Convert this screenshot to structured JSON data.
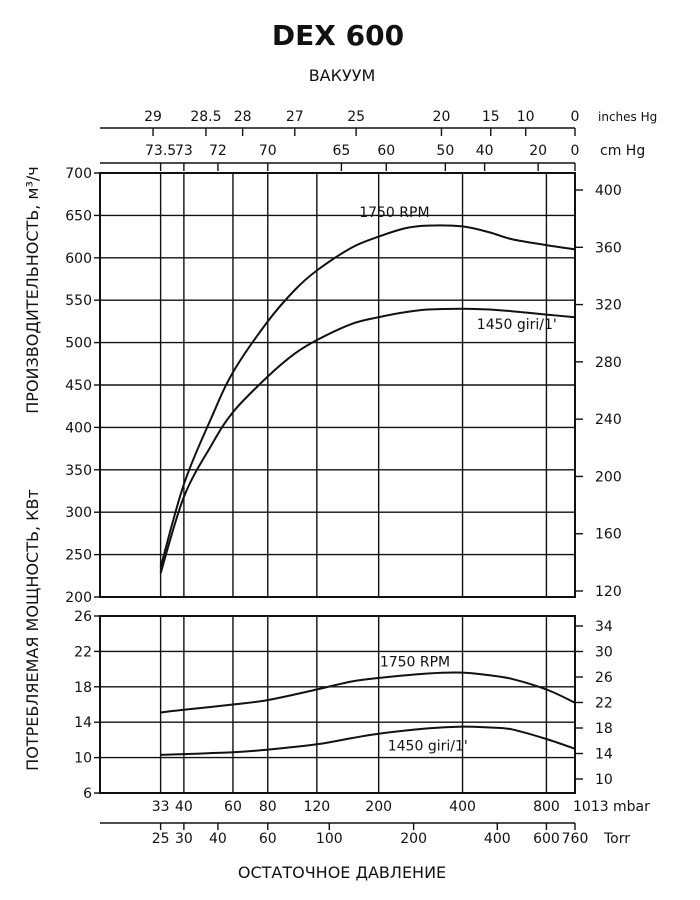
{
  "chart_data": {
    "type": "line",
    "title": "DEX 600",
    "top_axis_label": "ВАКУУМ",
    "bottom_axis_label": "ОСТАТОЧНОЕ ДАВЛЕНИЕ",
    "x_scale": "log",
    "x_range_mbar": [
      20,
      1013
    ],
    "top_axes": [
      {
        "unit": "inches Hg",
        "ticks": [
          {
            "label": "29",
            "mbar": 31
          },
          {
            "label": "28.5",
            "mbar": 48
          },
          {
            "label": "28",
            "mbar": 65
          },
          {
            "label": "27",
            "mbar": 100
          },
          {
            "label": "25",
            "mbar": 166
          },
          {
            "label": "20",
            "mbar": 336
          },
          {
            "label": "15",
            "mbar": 505
          },
          {
            "label": "10",
            "mbar": 674
          },
          {
            "label": "0",
            "mbar": 1013
          }
        ]
      },
      {
        "unit": "cm Hg",
        "ticks": [
          {
            "label": "73.5",
            "mbar": 33
          },
          {
            "label": "73",
            "mbar": 40
          },
          {
            "label": "72",
            "mbar": 53
          },
          {
            "label": "70",
            "mbar": 80
          },
          {
            "label": "65",
            "mbar": 147
          },
          {
            "label": "60",
            "mbar": 213
          },
          {
            "label": "50",
            "mbar": 347
          },
          {
            "label": "40",
            "mbar": 480
          },
          {
            "label": "20",
            "mbar": 747
          },
          {
            "label": "0",
            "mbar": 1013
          }
        ]
      }
    ],
    "bottom_axes": [
      {
        "unit": "mbar",
        "ticks": [
          {
            "label": "33",
            "mbar": 33
          },
          {
            "label": "40",
            "mbar": 40
          },
          {
            "label": "60",
            "mbar": 60
          },
          {
            "label": "80",
            "mbar": 80
          },
          {
            "label": "120",
            "mbar": 120
          },
          {
            "label": "200",
            "mbar": 200
          },
          {
            "label": "400",
            "mbar": 400
          },
          {
            "label": "800",
            "mbar": 800
          },
          {
            "label": "1013",
            "mbar": 1013
          }
        ]
      },
      {
        "unit": "Torr",
        "ticks": [
          {
            "label": "25",
            "mbar": 33
          },
          {
            "label": "30",
            "mbar": 40
          },
          {
            "label": "40",
            "mbar": 53
          },
          {
            "label": "60",
            "mbar": 80
          },
          {
            "label": "100",
            "mbar": 133
          },
          {
            "label": "200",
            "mbar": 267
          },
          {
            "label": "400",
            "mbar": 533
          },
          {
            "label": "600",
            "mbar": 800
          },
          {
            "label": "760",
            "mbar": 1013
          }
        ]
      }
    ],
    "panels": [
      {
        "id": "capacity",
        "ylabel": "ПРОИЗВОДИТЕЛЬНОСТЬ, м³/ч",
        "ylim": [
          200,
          700
        ],
        "yticks": [
          200,
          250,
          300,
          350,
          400,
          450,
          500,
          550,
          600,
          650,
          700
        ],
        "y2lim": [
          120,
          410
        ],
        "y2ticks": [
          120,
          160,
          200,
          240,
          280,
          320,
          360,
          400
        ],
        "series": [
          {
            "name": "1750 RPM",
            "points": [
              [
                33,
                235
              ],
              [
                40,
                333
              ],
              [
                50,
                410
              ],
              [
                60,
                465
              ],
              [
                80,
                525
              ],
              [
                100,
                562
              ],
              [
                120,
                585
              ],
              [
                160,
                612
              ],
              [
                200,
                625
              ],
              [
                250,
                635
              ],
              [
                300,
                638
              ],
              [
                400,
                637
              ],
              [
                500,
                630
              ],
              [
                600,
                622
              ],
              [
                800,
                615
              ],
              [
                1013,
                610
              ]
            ]
          },
          {
            "name": "1450 giri/1'",
            "points": [
              [
                33,
                228
              ],
              [
                40,
                318
              ],
              [
                50,
                378
              ],
              [
                60,
                418
              ],
              [
                80,
                460
              ],
              [
                100,
                487
              ],
              [
                120,
                503
              ],
              [
                160,
                522
              ],
              [
                200,
                530
              ],
              [
                250,
                536
              ],
              [
                300,
                539
              ],
              [
                400,
                540
              ],
              [
                500,
                539
              ],
              [
                600,
                537
              ],
              [
                800,
                533
              ],
              [
                1013,
                530
              ]
            ]
          }
        ]
      },
      {
        "id": "power",
        "ylabel": "ПОТРЕБЛЯЕМАЯ МОЩНОСТЬ, КВт",
        "ylim": [
          6,
          26
        ],
        "yticks": [
          6,
          10,
          14,
          18,
          22,
          26
        ],
        "y2lim": [
          8,
          34
        ],
        "y2ticks": [
          10,
          14,
          18,
          22,
          26,
          30,
          34
        ],
        "series": [
          {
            "name": "1750 RPM",
            "points": [
              [
                33,
                15.1
              ],
              [
                40,
                15.4
              ],
              [
                60,
                16.0
              ],
              [
                80,
                16.5
              ],
              [
                120,
                17.7
              ],
              [
                160,
                18.6
              ],
              [
                200,
                19.0
              ],
              [
                300,
                19.5
              ],
              [
                400,
                19.6
              ],
              [
                500,
                19.3
              ],
              [
                600,
                18.9
              ],
              [
                800,
                17.7
              ],
              [
                1013,
                16.2
              ]
            ]
          },
          {
            "name": "1450 giri/1'",
            "points": [
              [
                33,
                10.3
              ],
              [
                40,
                10.4
              ],
              [
                60,
                10.6
              ],
              [
                80,
                10.9
              ],
              [
                120,
                11.5
              ],
              [
                160,
                12.2
              ],
              [
                200,
                12.7
              ],
              [
                300,
                13.3
              ],
              [
                400,
                13.5
              ],
              [
                500,
                13.4
              ],
              [
                600,
                13.2
              ],
              [
                800,
                12.1
              ],
              [
                1013,
                11.0
              ]
            ]
          }
        ]
      }
    ],
    "grid": true
  }
}
